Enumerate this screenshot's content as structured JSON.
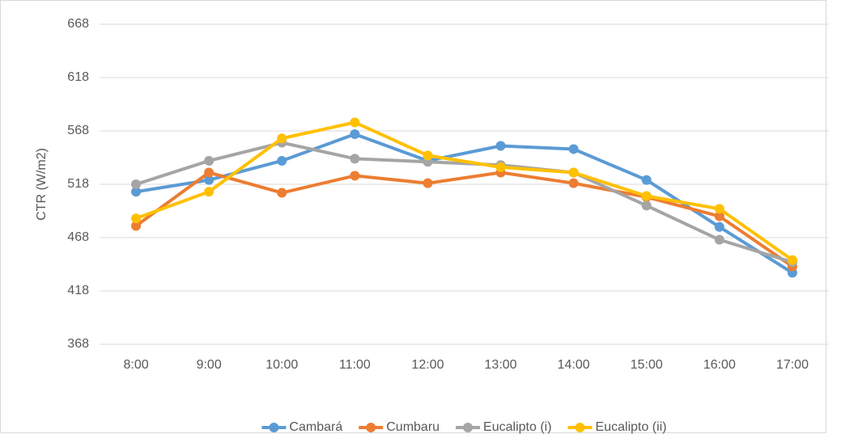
{
  "chart_data": {
    "type": "line",
    "y_label": "CTR (W/m2)",
    "categories": [
      "8:00",
      "9:00",
      "10:00",
      "11:00",
      "12:00",
      "13:00",
      "14:00",
      "15:00",
      "16:00",
      "17:00"
    ],
    "series": [
      {
        "name": "Cambará",
        "color": "#5b9bd5",
        "values": [
          511,
          522,
          540,
          565,
          540,
          554,
          551,
          522,
          478,
          435
        ]
      },
      {
        "name": "Cumbaru",
        "color": "#ed7d31",
        "values": [
          479,
          529,
          510,
          526,
          519,
          529,
          519,
          506,
          488,
          441
        ]
      },
      {
        "name": "Eucalipto (i)",
        "color": "#a5a5a5",
        "values": [
          518,
          540,
          557,
          542,
          539,
          536,
          529,
          498,
          466,
          445
        ]
      },
      {
        "name": "Eucalipto (ii)",
        "color": "#ffc000",
        "values": [
          486,
          511,
          561,
          576,
          545,
          534,
          529,
          507,
          495,
          447
        ]
      }
    ],
    "ylim": [
      368,
      668
    ],
    "yticks": [
      368,
      418,
      468,
      518,
      568,
      618,
      668
    ],
    "grid": true,
    "legend": "bottom"
  }
}
